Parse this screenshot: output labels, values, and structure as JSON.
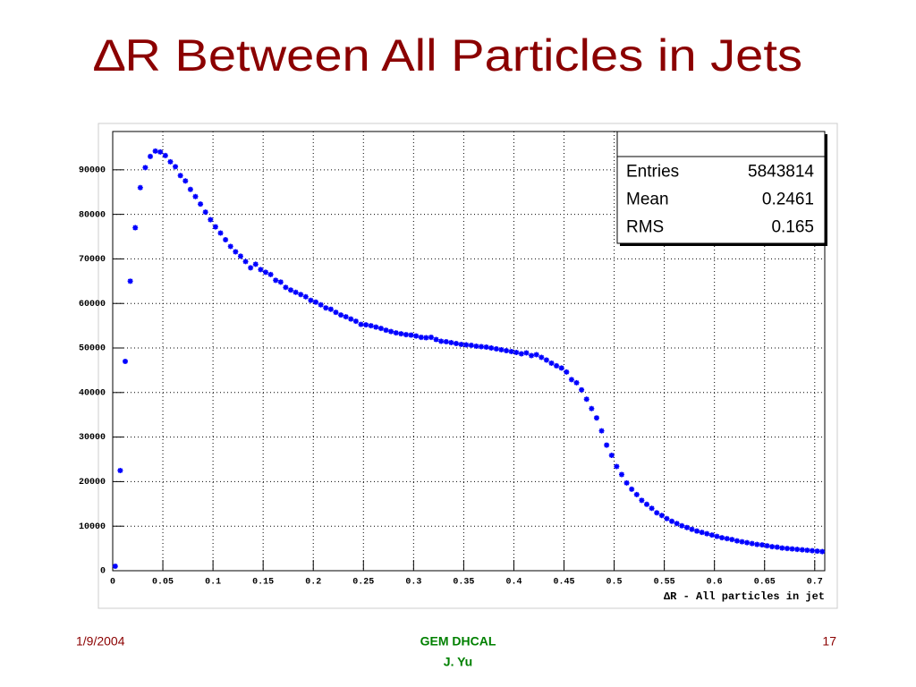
{
  "chart_data": {
    "type": "scatter",
    "title": "∆R Between All Particles in Jets",
    "x_label": "∆R - All particles in jet",
    "color": "#0000ff",
    "grid": true,
    "xlim": [
      0,
      0.71
    ],
    "ylim": [
      0,
      98600
    ],
    "xticks": [
      0,
      0.05,
      0.1,
      0.15,
      0.2,
      0.25,
      0.3,
      0.35,
      0.4,
      0.45,
      0.5,
      0.55,
      0.6,
      0.65,
      0.7
    ],
    "yticks": [
      0,
      10000,
      20000,
      30000,
      40000,
      50000,
      60000,
      70000,
      80000,
      90000
    ],
    "stats": [
      {
        "name": "Entries",
        "value": 5843814
      },
      {
        "name": "Mean",
        "value": 0.2461
      },
      {
        "name": "RMS",
        "value": 0.165
      }
    ],
    "x": [
      0.0025,
      0.0075,
      0.0125,
      0.0175,
      0.0225,
      0.0275,
      0.0325,
      0.0375,
      0.0425,
      0.0475,
      0.0525,
      0.0575,
      0.0625,
      0.0675,
      0.0725,
      0.0775,
      0.0825,
      0.0875,
      0.0925,
      0.0975,
      0.1025,
      0.1075,
      0.1125,
      0.1175,
      0.1225,
      0.1275,
      0.1325,
      0.1375,
      0.1425,
      0.1475,
      0.1525,
      0.1575,
      0.1625,
      0.1675,
      0.1725,
      0.1775,
      0.1825,
      0.1875,
      0.1925,
      0.1975,
      0.2025,
      0.2075,
      0.2125,
      0.2175,
      0.2225,
      0.2275,
      0.2325,
      0.2375,
      0.2425,
      0.2475,
      0.2525,
      0.2575,
      0.2625,
      0.2675,
      0.2725,
      0.2775,
      0.2825,
      0.2875,
      0.2925,
      0.2975,
      0.3025,
      0.3075,
      0.3125,
      0.3175,
      0.3225,
      0.3275,
      0.3325,
      0.3375,
      0.3425,
      0.3475,
      0.3525,
      0.3575,
      0.3625,
      0.3675,
      0.3725,
      0.3775,
      0.3825,
      0.3875,
      0.3925,
      0.3975,
      0.4025,
      0.4075,
      0.4125,
      0.4175,
      0.4225,
      0.4275,
      0.4325,
      0.4375,
      0.4425,
      0.4475,
      0.4525,
      0.4575,
      0.4625,
      0.4675,
      0.4725,
      0.4775,
      0.4825,
      0.4875,
      0.4925,
      0.4975,
      0.5025,
      0.5075,
      0.5125,
      0.5175,
      0.5225,
      0.5275,
      0.5325,
      0.5375,
      0.5425,
      0.5475,
      0.5525,
      0.5575,
      0.5625,
      0.5675,
      0.5725,
      0.5775,
      0.5825,
      0.5875,
      0.5925,
      0.5975,
      0.6025,
      0.6075,
      0.6125,
      0.6175,
      0.6225,
      0.6275,
      0.6325,
      0.6375,
      0.6425,
      0.6475,
      0.6525,
      0.6575,
      0.6625,
      0.6675,
      0.6725,
      0.6775,
      0.6825,
      0.6875,
      0.6925,
      0.6975,
      0.7025,
      0.7075
    ],
    "values": [
      1000,
      22500,
      47000,
      65000,
      77000,
      86000,
      90500,
      93000,
      94200,
      94000,
      93200,
      91800,
      90700,
      88700,
      87500,
      85600,
      84000,
      82300,
      80500,
      78800,
      77200,
      75800,
      74300,
      72800,
      71600,
      70600,
      69400,
      68000,
      68800,
      67600,
      67000,
      66500,
      65200,
      64800,
      63600,
      63000,
      62500,
      62000,
      61500,
      60700,
      60300,
      59700,
      59000,
      58700,
      58000,
      57400,
      57000,
      56500,
      56000,
      55300,
      55200,
      55000,
      54700,
      54400,
      54000,
      53700,
      53400,
      53200,
      53000,
      52900,
      52700,
      52400,
      52300,
      52400,
      51900,
      51500,
      51400,
      51200,
      51000,
      50800,
      50700,
      50600,
      50400,
      50300,
      50200,
      50000,
      49800,
      49600,
      49400,
      49200,
      49000,
      48700,
      48900,
      48300,
      48500,
      47900,
      47300,
      46600,
      46000,
      45500,
      44600,
      42900,
      42200,
      40600,
      38500,
      36400,
      34300,
      31400,
      28200,
      25900,
      23400,
      21600,
      19700,
      18300,
      17100,
      15800,
      14900,
      14000,
      13000,
      12400,
      11700,
      11100,
      10600,
      10100,
      9700,
      9300,
      8900,
      8600,
      8300,
      8000,
      7700,
      7400,
      7200,
      7000,
      6700,
      6500,
      6300,
      6100,
      5900,
      5800,
      5600,
      5400,
      5300,
      5100,
      5000,
      4900,
      4800,
      4700,
      4600,
      4500,
      4400,
      4300
    ]
  },
  "footer": {
    "date": "1/9/2004",
    "project": "GEM DHCAL",
    "author": "J. Yu",
    "page": "17"
  }
}
